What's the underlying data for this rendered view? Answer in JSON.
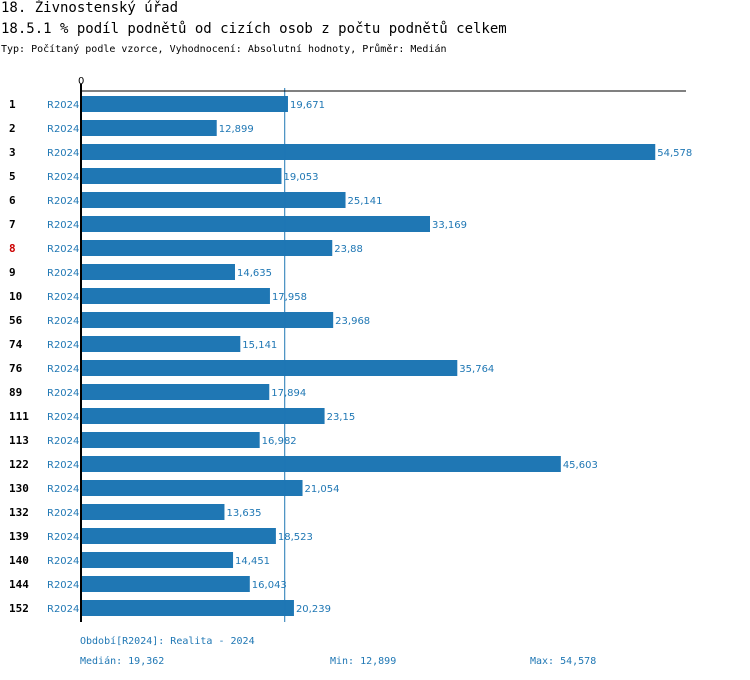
{
  "header": {
    "title": "18. Živnostenský úřad",
    "subtitle": "18.5.1 % podíl podnětů od cizích osob z počtu podnětů celkem",
    "type_line": "Typ: Počítaný podle vzorce, Vyhodnocení: Absolutní hodnoty, Průměr: Medián"
  },
  "footer": {
    "period": "Období[R2024]: Realita - 2024",
    "median": "Medián: 19,362",
    "min": "Min: 12,899",
    "max": "Max: 54,578"
  },
  "colors": {
    "bar": "#1f77b4",
    "highlight": "#cc0000"
  },
  "chart_data": {
    "type": "bar",
    "orientation": "horizontal",
    "series_name": "R2024",
    "x_tick": "0",
    "median": 19.362,
    "min": 12.899,
    "max": 54.578,
    "xlim": [
      0,
      57.5
    ],
    "highlight_category": "8",
    "categories": [
      "1",
      "2",
      "3",
      "5",
      "6",
      "7",
      "8",
      "9",
      "10",
      "56",
      "74",
      "76",
      "89",
      "111",
      "113",
      "122",
      "130",
      "132",
      "139",
      "140",
      "144",
      "152"
    ],
    "values": [
      19.671,
      12.899,
      54.578,
      19.053,
      25.141,
      33.169,
      23.88,
      14.635,
      17.958,
      23.968,
      15.141,
      35.764,
      17.894,
      23.15,
      16.982,
      45.603,
      21.054,
      13.635,
      18.523,
      14.451,
      16.043,
      20.239
    ],
    "value_labels": [
      "19,671",
      "12,899",
      "54,578",
      "19,053",
      "25,141",
      "33,169",
      "23,88",
      "14,635",
      "17,958",
      "23,968",
      "15,141",
      "35,764",
      "17,894",
      "23,15",
      "16,982",
      "45,603",
      "21,054",
      "13,635",
      "18,523",
      "14,451",
      "16,043",
      "20,239"
    ]
  }
}
